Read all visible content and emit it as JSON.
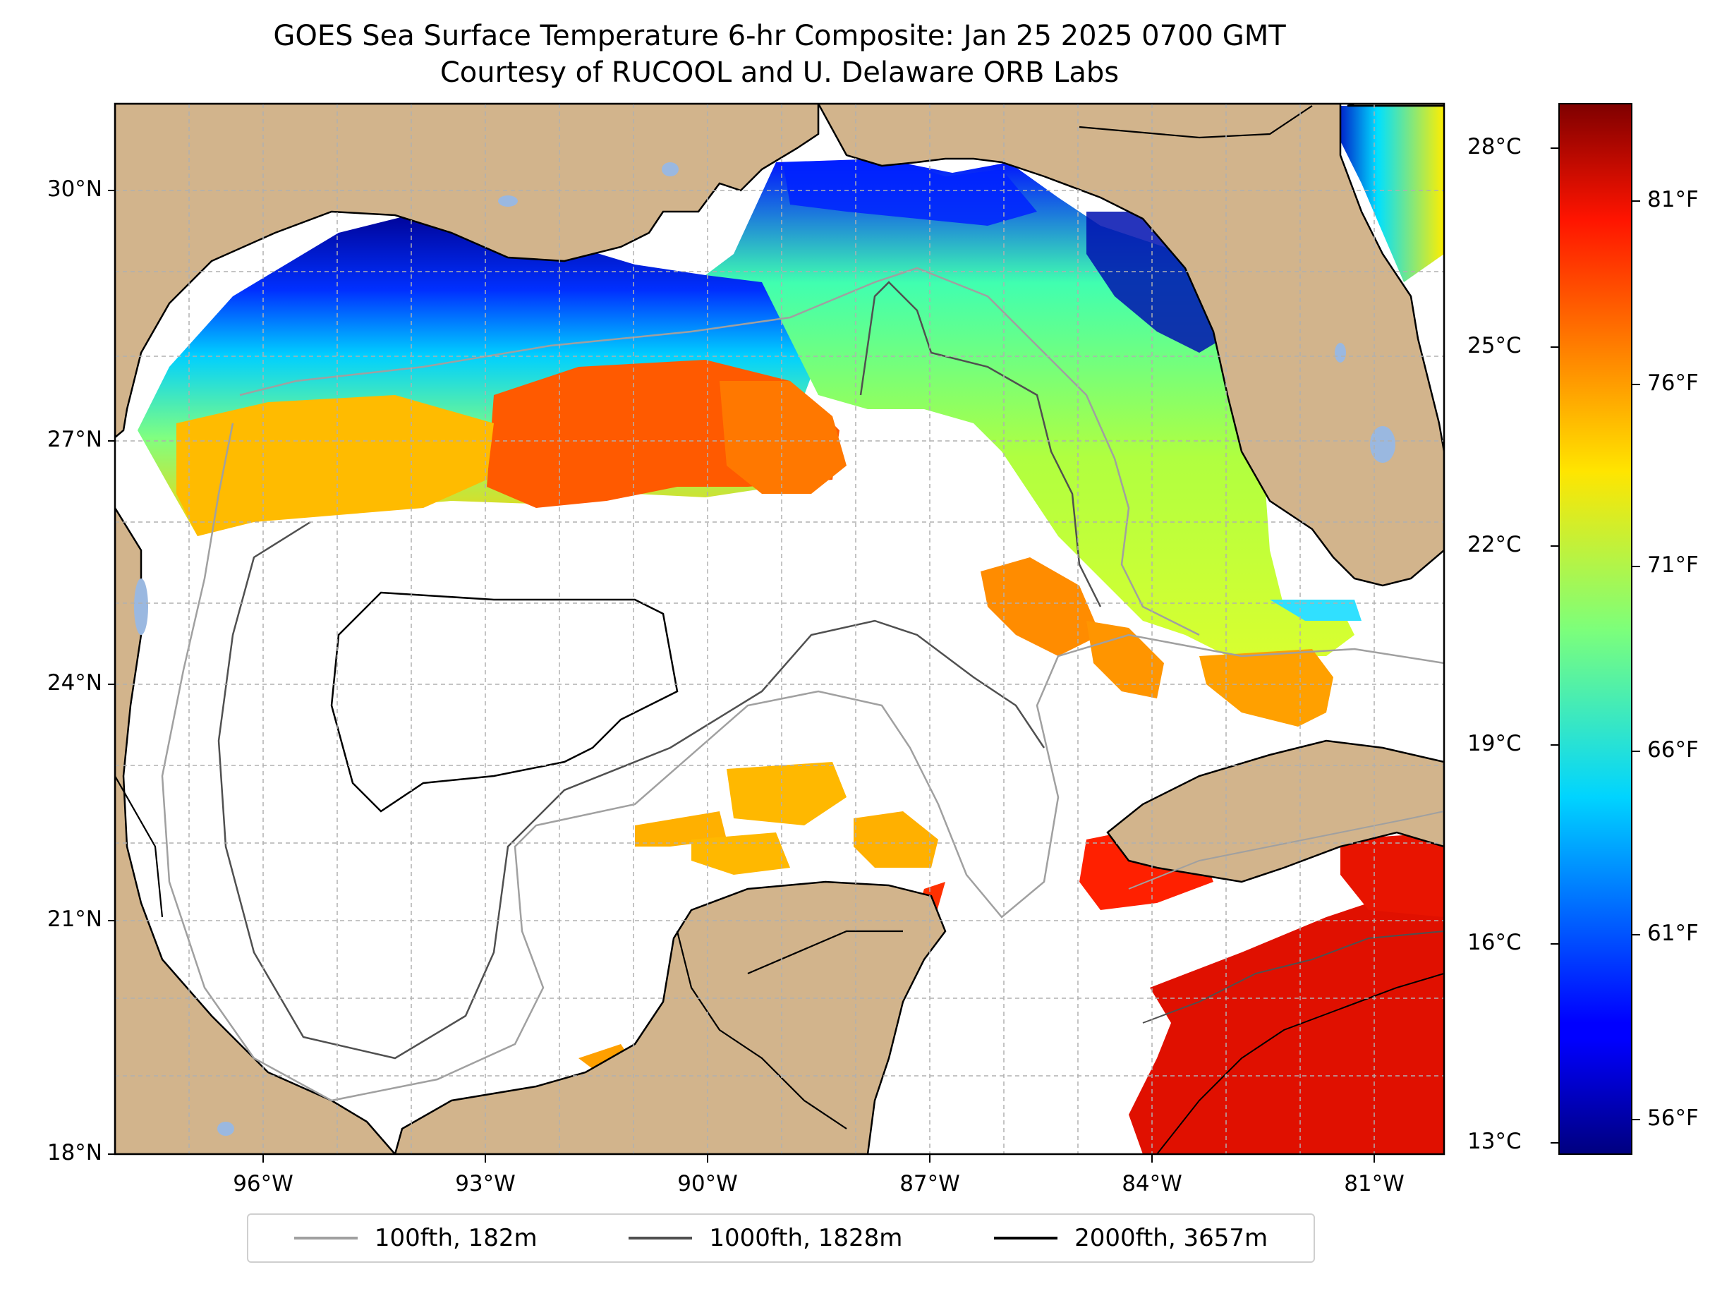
{
  "title": {
    "line1": "GOES Sea Surface Temperature 6-hr Composite: Jan 25 2025 0700 GMT",
    "line2": "Courtesy of RUCOOL and U. Delaware ORB Labs"
  },
  "map": {
    "extent": {
      "lon_min": -98,
      "lon_max": -80,
      "lat_min": 18,
      "lat_max": 31
    },
    "lat_ticks": [
      "18°N",
      "21°N",
      "24°N",
      "27°N",
      "30°N"
    ],
    "lon_ticks": [
      "96°W",
      "93°W",
      "90°W",
      "87°W",
      "84°W",
      "81°W"
    ],
    "land_color": "#d2b48c",
    "lake_color": "#9ab8e0",
    "gridlines": true
  },
  "colorbar": {
    "colormap": "jet",
    "celsius_ticks": [
      "28°C",
      "25°C",
      "22°C",
      "19°C",
      "16°C",
      "13°C"
    ],
    "fahrenheit_ticks": [
      "81°F",
      "76°F",
      "71°F",
      "66°F",
      "61°F",
      "56°F"
    ]
  },
  "legend": [
    {
      "label": "100fth, 182m",
      "color": "#a0a0a0"
    },
    {
      "label": "1000fth, 1828m",
      "color": "#505050"
    },
    {
      "label": "2000fth, 3657m",
      "color": "#000000"
    }
  ]
}
